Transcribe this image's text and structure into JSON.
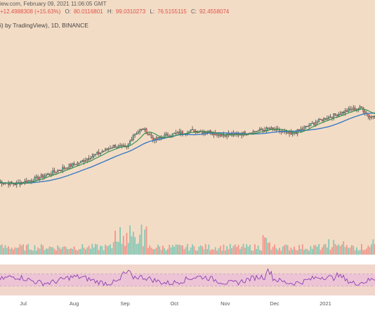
{
  "header": {
    "line1": "iew.com, February 09, 2021 11:06:05 GMT",
    "line2_prefix": "+12.4988308 (+15.63%)",
    "open_label": "O:",
    "open_value": "80.0116801",
    "high_label": "H:",
    "high_value": "99.0310273",
    "low_label": "L:",
    "low_value": "76.5155115",
    "close_label": "C:",
    "close_value": "92.4558074",
    "line3": "i) by TradingView), 1D, BINANCE"
  },
  "colors": {
    "price_bg": "#f3dcc5",
    "volume_bg": "#f3dcc5",
    "rsi_bg": "#f1d6cc",
    "rsi_band": "#ecc4d6",
    "up": "#5fb4a3",
    "down": "#ec6f6a",
    "up_vol": "#83c8b6",
    "down_vol": "#f1958c",
    "ma_fast": "#2f8f4b",
    "ma_slow": "#3c7cc2",
    "rsi_line": "#8e3fb3",
    "axis_text": "#555555"
  },
  "chart_data": {
    "type": "candlestick",
    "symbol_note": "by TradingView, 1D, BINANCE",
    "x_labels": [
      "Jul",
      "Aug",
      "Sep",
      "Oct",
      "Nov",
      "Dec",
      "2021"
    ],
    "x_label_days": [
      15,
      46,
      77,
      107,
      138,
      168,
      199
    ],
    "days": 230,
    "price_ylim": [
      0,
      100
    ],
    "price_series": [
      {
        "t": 0,
        "v": 12
      },
      {
        "t": 10,
        "v": 10
      },
      {
        "t": 20,
        "v": 14
      },
      {
        "t": 30,
        "v": 20
      },
      {
        "t": 40,
        "v": 27
      },
      {
        "t": 50,
        "v": 33
      },
      {
        "t": 55,
        "v": 38
      },
      {
        "t": 62,
        "v": 43
      },
      {
        "t": 70,
        "v": 50
      },
      {
        "t": 78,
        "v": 48
      },
      {
        "t": 82,
        "v": 62
      },
      {
        "t": 88,
        "v": 68
      },
      {
        "t": 95,
        "v": 56
      },
      {
        "t": 100,
        "v": 60
      },
      {
        "t": 108,
        "v": 63
      },
      {
        "t": 118,
        "v": 66
      },
      {
        "t": 128,
        "v": 65
      },
      {
        "t": 135,
        "v": 62
      },
      {
        "t": 145,
        "v": 62
      },
      {
        "t": 158,
        "v": 66
      },
      {
        "t": 165,
        "v": 68
      },
      {
        "t": 172,
        "v": 65
      },
      {
        "t": 178,
        "v": 62
      },
      {
        "t": 185,
        "v": 68
      },
      {
        "t": 193,
        "v": 75
      },
      {
        "t": 200,
        "v": 80
      },
      {
        "t": 207,
        "v": 84
      },
      {
        "t": 214,
        "v": 88
      },
      {
        "t": 221,
        "v": 90
      },
      {
        "t": 226,
        "v": 80
      },
      {
        "t": 230,
        "v": 84
      }
    ],
    "volume_ylim": [
      0,
      100
    ],
    "rsi_ylim": [
      0,
      100
    ],
    "rsi_band": [
      30,
      70
    ]
  }
}
